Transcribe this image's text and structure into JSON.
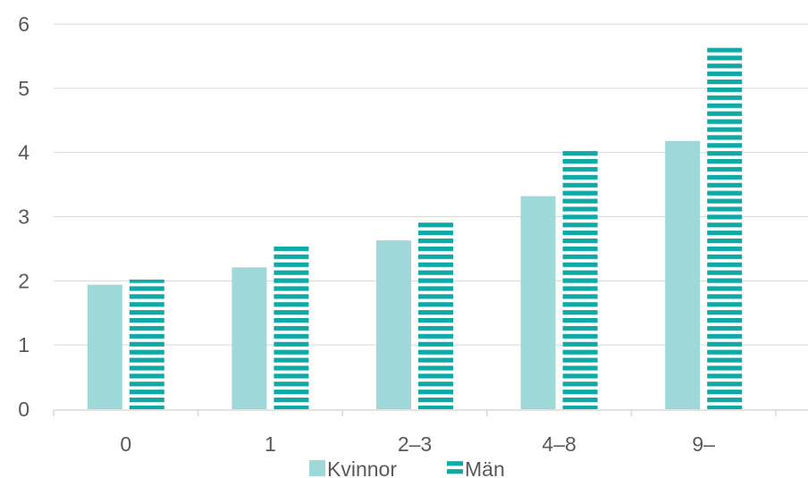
{
  "chart_data": {
    "type": "bar",
    "categories": [
      "0",
      "1",
      "2–3",
      "4–8",
      "9–"
    ],
    "series": [
      {
        "name": "Kvinnor",
        "values": [
          1.94,
          2.21,
          2.63,
          3.32,
          4.18
        ],
        "color": "#9ed8d8",
        "pattern": "solid"
      },
      {
        "name": "Män",
        "values": [
          2.02,
          2.54,
          2.93,
          4.06,
          5.63
        ],
        "color": "#0fa9a6",
        "pattern": "horizontal-stripes"
      }
    ],
    "ylim": [
      0,
      6
    ],
    "yticks": [
      "0",
      "1",
      "2",
      "3",
      "4",
      "5",
      "6"
    ],
    "grid": true,
    "legend_position": "bottom",
    "title": "",
    "xlabel": "",
    "ylabel": ""
  }
}
